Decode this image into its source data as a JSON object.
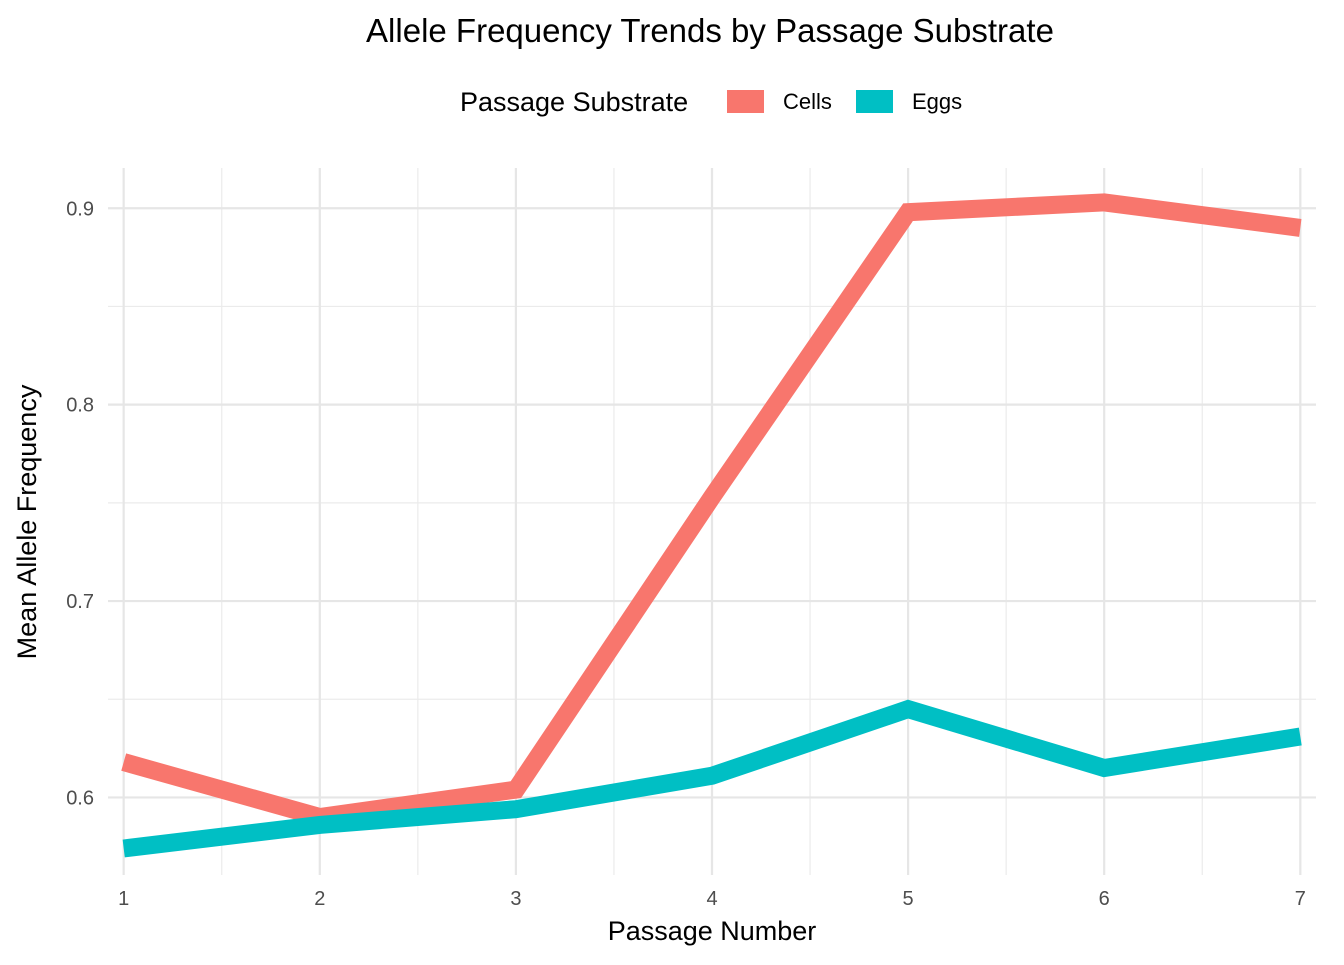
{
  "chart_data": {
    "type": "line",
    "title": "Allele Frequency Trends by Passage Substrate",
    "xlabel": "Passage Number",
    "ylabel": "Mean Allele Frequency",
    "legend_title": "Passage Substrate",
    "legend_position": "top",
    "grid": true,
    "x": [
      1,
      2,
      3,
      4,
      5,
      6,
      7
    ],
    "x_tick_labels": [
      "1",
      "2",
      "3",
      "4",
      "5",
      "6",
      "7"
    ],
    "y_ticks": [
      0.6,
      0.7,
      0.8,
      0.9
    ],
    "y_tick_labels": [
      "0.6",
      "0.7",
      "0.8",
      "0.9"
    ],
    "xlim": [
      0.92,
      7.08
    ],
    "ylim": [
      0.5605,
      0.9205
    ],
    "series": [
      {
        "name": "Cells",
        "color": "#F8766D",
        "values": [
          0.618,
          0.59,
          0.604,
          0.753,
          0.898,
          0.903,
          0.89
        ]
      },
      {
        "name": "Eggs",
        "color": "#00BFC4",
        "values": [
          0.574,
          0.586,
          0.594,
          0.611,
          0.645,
          0.615,
          0.631
        ]
      }
    ]
  }
}
